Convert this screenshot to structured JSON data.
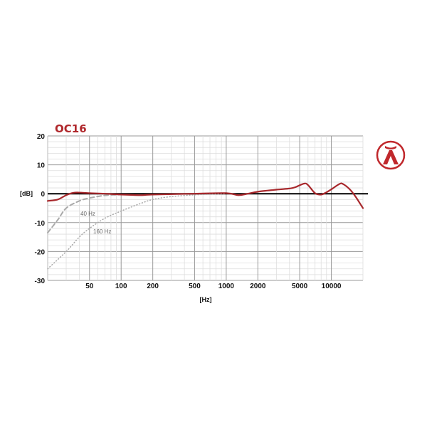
{
  "chart_data": {
    "type": "line",
    "title": "OC16",
    "xlabel": "[Hz]",
    "ylabel": "[dB]",
    "xscale": "log",
    "xlim": [
      20,
      20000
    ],
    "ylim": [
      -30,
      20
    ],
    "grid": true,
    "x_ticks": [
      50,
      100,
      200,
      500,
      1000,
      2000,
      5000,
      10000
    ],
    "x_tick_labels": [
      "50",
      "100",
      "200",
      "500",
      "1000",
      "2000",
      "5000",
      "10000"
    ],
    "y_ticks": [
      20,
      10,
      0,
      -10,
      -20,
      -30
    ],
    "y_tick_labels": [
      "20",
      "10",
      "0",
      "-10",
      "-20",
      "-30"
    ],
    "series": [
      {
        "style": "solid",
        "color": "#a8282c",
        "x": [
          20,
          25,
          30,
          35,
          40,
          50,
          70,
          100,
          150,
          200,
          500,
          1000,
          1300,
          1600,
          2000,
          3000,
          4000,
          4500,
          5500,
          6000,
          7000,
          8000,
          9000,
          10000,
          12000,
          13000,
          15000,
          17000,
          20000
        ],
        "y": [
          -2.5,
          -2,
          -0.5,
          0.3,
          0.4,
          0.2,
          0,
          -0.3,
          -0.5,
          -0.3,
          0,
          0.2,
          -0.5,
          0,
          0.7,
          1.4,
          1.8,
          2.2,
          3.5,
          3,
          0.2,
          -0.3,
          0.5,
          1.5,
          3.4,
          3.3,
          1.5,
          -1,
          -5
        ]
      },
      {
        "name": "40 Hz",
        "style": "dashed",
        "color": "#aaaaaa",
        "x": [
          20,
          25,
          30,
          40,
          50,
          70,
          100
        ],
        "y": [
          -13.5,
          -9,
          -5,
          -2.5,
          -1.5,
          -0.6,
          -0.3
        ]
      },
      {
        "name": "160 Hz",
        "style": "dotted",
        "color": "#aaaaaa",
        "x": [
          20,
          30,
          40,
          50,
          70,
          100,
          150,
          200,
          300,
          500,
          1000
        ],
        "y": [
          -26,
          -20,
          -15,
          -12,
          -8.5,
          -6,
          -3.5,
          -2,
          -1,
          -0.4,
          0
        ]
      }
    ],
    "annotations": [
      "40 Hz",
      "160 Hz"
    ]
  },
  "logo": {
    "color": "#c0282c",
    "icon": "lambda-logo-icon"
  }
}
